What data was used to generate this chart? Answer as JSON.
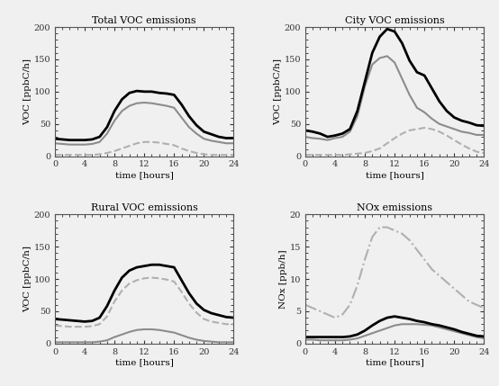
{
  "time": [
    0,
    1,
    2,
    3,
    4,
    5,
    6,
    7,
    8,
    9,
    10,
    11,
    12,
    13,
    14,
    15,
    16,
    17,
    18,
    19,
    20,
    21,
    22,
    23,
    24
  ],
  "total_black": [
    27,
    26,
    25,
    25,
    25,
    26,
    30,
    45,
    70,
    88,
    98,
    101,
    100,
    100,
    98,
    97,
    95,
    80,
    62,
    48,
    38,
    34,
    30,
    28,
    28
  ],
  "total_grey_solid": [
    20,
    19,
    18,
    18,
    18,
    19,
    22,
    35,
    55,
    70,
    78,
    82,
    83,
    82,
    80,
    78,
    75,
    60,
    45,
    35,
    27,
    24,
    22,
    20,
    20
  ],
  "total_grey_dashed": [
    2,
    2,
    2,
    2,
    2,
    2,
    3,
    5,
    8,
    12,
    16,
    20,
    22,
    22,
    21,
    19,
    17,
    12,
    8,
    5,
    3,
    2,
    2,
    2,
    2
  ],
  "city_black": [
    40,
    38,
    35,
    30,
    32,
    35,
    42,
    70,
    115,
    160,
    185,
    197,
    193,
    175,
    148,
    130,
    125,
    105,
    85,
    70,
    60,
    55,
    52,
    48,
    47
  ],
  "city_grey_solid": [
    30,
    28,
    27,
    25,
    28,
    30,
    38,
    62,
    108,
    142,
    152,
    155,
    145,
    120,
    95,
    75,
    68,
    58,
    50,
    46,
    42,
    38,
    36,
    33,
    33
  ],
  "city_grey_dashed": [
    2,
    2,
    2,
    2,
    2,
    2,
    3,
    4,
    5,
    8,
    12,
    20,
    28,
    35,
    40,
    42,
    44,
    42,
    38,
    32,
    25,
    18,
    12,
    7,
    5
  ],
  "rural_black": [
    38,
    37,
    36,
    35,
    34,
    35,
    40,
    58,
    82,
    102,
    113,
    118,
    120,
    122,
    122,
    120,
    118,
    98,
    78,
    62,
    52,
    47,
    44,
    41,
    40
  ],
  "rural_grey_dashed": [
    28,
    27,
    26,
    26,
    26,
    27,
    30,
    42,
    65,
    82,
    93,
    98,
    101,
    102,
    101,
    99,
    96,
    80,
    62,
    48,
    38,
    34,
    32,
    30,
    30
  ],
  "rural_grey_solid": [
    2,
    2,
    2,
    2,
    2,
    2,
    3,
    5,
    10,
    14,
    18,
    21,
    22,
    22,
    21,
    19,
    17,
    13,
    9,
    6,
    4,
    3,
    2,
    2,
    2
  ],
  "nox_black": [
    1.0,
    1.0,
    1.0,
    1.0,
    1.0,
    1.0,
    1.1,
    1.4,
    2.0,
    2.8,
    3.5,
    4.0,
    4.2,
    4.0,
    3.8,
    3.5,
    3.3,
    3.0,
    2.8,
    2.5,
    2.2,
    1.8,
    1.5,
    1.2,
    1.1
  ],
  "nox_grey_solid": [
    0.6,
    0.6,
    0.5,
    0.5,
    0.5,
    0.5,
    0.6,
    0.8,
    1.2,
    1.6,
    2.0,
    2.4,
    2.8,
    3.0,
    3.0,
    3.0,
    2.9,
    2.8,
    2.5,
    2.2,
    1.9,
    1.6,
    1.3,
    1.0,
    0.8
  ],
  "nox_grey_dashed": [
    6.0,
    5.5,
    5.0,
    4.5,
    4.0,
    4.5,
    6.0,
    9.0,
    13.0,
    16.5,
    18.0,
    18.0,
    17.5,
    17.0,
    16.0,
    14.5,
    13.0,
    11.5,
    10.5,
    9.5,
    8.5,
    7.5,
    6.5,
    6.0,
    5.5
  ],
  "black_color": "#000000",
  "grey_solid_color": "#8c8c8c",
  "grey_dashed_color": "#b0b0b0",
  "title_total": "Total VOC emissions",
  "title_city": "City VOC emissions",
  "title_rural": "Rural VOC emissions",
  "title_nox": "NOx emissions",
  "ylabel_voc": "VOC [ppbC/h]",
  "ylabel_nox": "NOx [ppb/h]",
  "xlabel": "time [hours]",
  "ylim_voc": [
    0,
    200
  ],
  "ylim_nox": [
    0,
    20
  ],
  "xlim": [
    0,
    24
  ],
  "xticks": [
    0,
    4,
    8,
    12,
    16,
    20,
    24
  ],
  "yticks_voc": [
    0,
    50,
    100,
    150,
    200
  ],
  "yticks_nox": [
    0,
    5,
    10,
    15,
    20
  ]
}
